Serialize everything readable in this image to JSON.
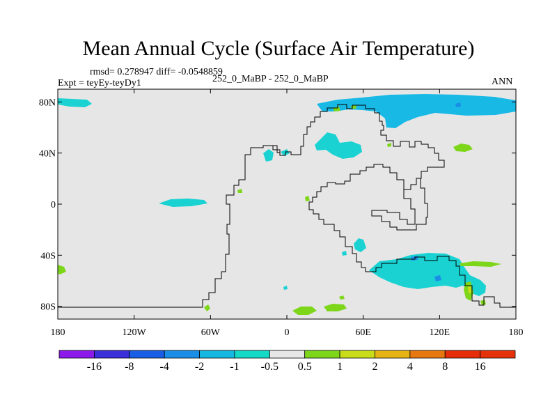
{
  "title": "Mean Annual Cycle (Surface Air Temperature)",
  "stats": "rmsd= 0.278947 diff= -0.0548859",
  "experiment": "Expt = teyEy-teyDy1",
  "subtitle": "252_0_MaBP - 252_0_MaBP",
  "season": "ANN",
  "map": {
    "background_color": "#e6e6e6",
    "lon_range": [
      -180,
      180
    ],
    "lat_range": [
      -90,
      90
    ],
    "lat_ticks": [
      "80N",
      "40N",
      "0",
      "40S",
      "80S"
    ],
    "lat_values": [
      80,
      40,
      0,
      -40,
      -80
    ],
    "lon_ticks": [
      "180",
      "120W",
      "60W",
      "0",
      "60E",
      "120E",
      "180"
    ],
    "lon_values": [
      -180,
      -120,
      -60,
      0,
      60,
      120,
      180
    ]
  },
  "colorbar": {
    "labels": [
      "-16",
      "-8",
      "-4",
      "-2",
      "-1",
      "-0.5",
      "0.5",
      "1",
      "2",
      "4",
      "8",
      "16"
    ],
    "colors": [
      "#8c1aeb",
      "#3a2fd9",
      "#1a5ee6",
      "#1a8ee6",
      "#15b8e0",
      "#14d9c7",
      "#e6e6e6",
      "#7ed61a",
      "#c8dc1a",
      "#e6b414",
      "#e6780f",
      "#e62d0a",
      "#e6320a"
    ]
  },
  "anomaly_colors": {
    "cyan": "#1ad2d2",
    "blue_cyan": "#19b9e6",
    "blue": "#1a8ee6",
    "green": "#7ed61a",
    "yellow": "#c8dc1a"
  }
}
